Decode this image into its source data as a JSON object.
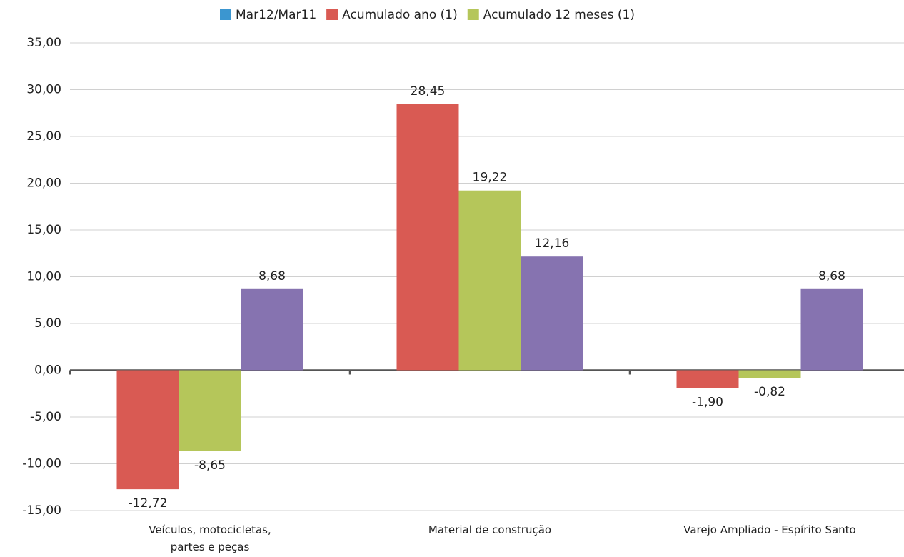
{
  "chart_data": {
    "type": "bar",
    "categories": [
      "Veículos, motocicletas, partes e peças",
      "Material de construção",
      "Varejo Ampliado - Espírito Santo"
    ],
    "series": [
      {
        "name": "Mar12/Mar11",
        "color": "#3b96d0",
        "values": [
          null,
          null,
          null
        ]
      },
      {
        "name": "Acumulado ano (1)",
        "color": "#d95a53",
        "values": [
          -12.72,
          28.45,
          -1.9
        ],
        "value_labels": [
          "-12,72",
          "28,45",
          "-1,90"
        ]
      },
      {
        "name": "Acumulado 12 meses (1)",
        "color": "#b5c65a",
        "values": [
          -8.65,
          19.22,
          -0.82
        ],
        "value_labels": [
          "-8,65",
          "19,22",
          "-0,82"
        ]
      },
      {
        "color": "#8673b0",
        "values": [
          8.68,
          12.16,
          8.68
        ],
        "value_labels": [
          "8,68",
          "12,16",
          "8,68"
        ]
      }
    ],
    "ylim": [
      -15,
      35
    ],
    "yticks": [
      {
        "value": -15,
        "label": "-15,00"
      },
      {
        "value": -10,
        "label": "-10,00"
      },
      {
        "value": -5,
        "label": "-5,00"
      },
      {
        "value": 0,
        "label": "0,00"
      },
      {
        "value": 5,
        "label": "5,00"
      },
      {
        "value": 10,
        "label": "10,00"
      },
      {
        "value": 15,
        "label": "15,00"
      },
      {
        "value": 20,
        "label": "20,00"
      },
      {
        "value": 25,
        "label": "25,00"
      },
      {
        "value": 30,
        "label": "30,00"
      },
      {
        "value": 35,
        "label": "35,00"
      }
    ],
    "grid": true,
    "legend": "top"
  }
}
